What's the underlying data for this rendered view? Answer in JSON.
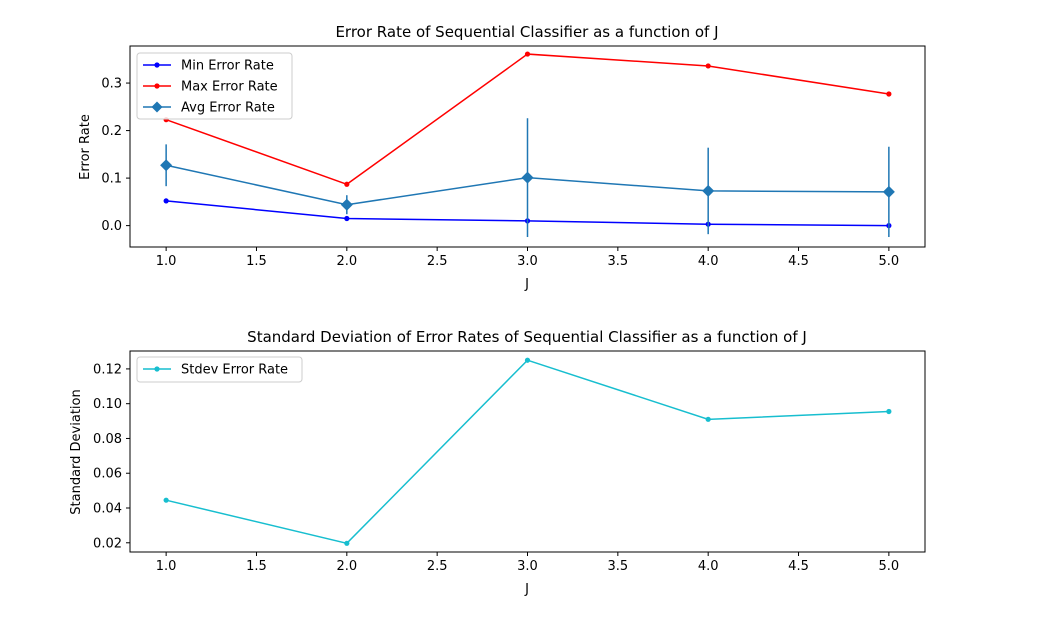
{
  "colors": {
    "min": "#0000ff",
    "max": "#ff0000",
    "avg": "#1f77b4",
    "stdev": "#17becf"
  },
  "chart_data": [
    {
      "type": "line",
      "title": "Error Rate of Sequential Classifier as a function of J",
      "xlabel": "J",
      "ylabel": "Error Rate",
      "xlim": [
        0.8,
        5.2
      ],
      "ylim": [
        -0.045,
        0.378
      ],
      "xticks": [
        "1.0",
        "1.5",
        "2.0",
        "2.5",
        "3.0",
        "3.5",
        "4.0",
        "4.5",
        "5.0"
      ],
      "yticks": [
        "0.0",
        "0.1",
        "0.2",
        "0.3"
      ],
      "legend_position": "upper-left",
      "x": [
        1,
        2,
        3,
        4,
        5
      ],
      "series": [
        {
          "name": "Min Error Rate",
          "color": "#0000ff",
          "marker": "dot",
          "values": [
            0.052,
            0.015,
            0.01,
            0.003,
            0.0
          ]
        },
        {
          "name": "Max Error Rate",
          "color": "#ff0000",
          "marker": "dot",
          "values": [
            0.223,
            0.087,
            0.361,
            0.336,
            0.277
          ]
        },
        {
          "name": "Avg Error Rate",
          "color": "#1f77b4",
          "marker": "diamond",
          "values": [
            0.127,
            0.044,
            0.101,
            0.073,
            0.071
          ],
          "error": [
            0.044,
            0.02,
            0.125,
            0.091,
            0.095
          ]
        }
      ]
    },
    {
      "type": "line",
      "title": "Standard Deviation of Error Rates of Sequential Classifier as a function of J",
      "xlabel": "J",
      "ylabel": "Standard Deviation",
      "xlim": [
        0.8,
        5.2
      ],
      "ylim": [
        0.0147,
        0.1303
      ],
      "xticks": [
        "1.0",
        "1.5",
        "2.0",
        "2.5",
        "3.0",
        "3.5",
        "4.0",
        "4.5",
        "5.0"
      ],
      "yticks": [
        "0.02",
        "0.04",
        "0.06",
        "0.08",
        "0.10",
        "0.12"
      ],
      "legend_position": "upper-left",
      "x": [
        1,
        2,
        3,
        4,
        5
      ],
      "series": [
        {
          "name": "Stdev Error Rate",
          "color": "#17becf",
          "marker": "dot",
          "values": [
            0.0445,
            0.0197,
            0.125,
            0.091,
            0.0955
          ]
        }
      ]
    }
  ]
}
